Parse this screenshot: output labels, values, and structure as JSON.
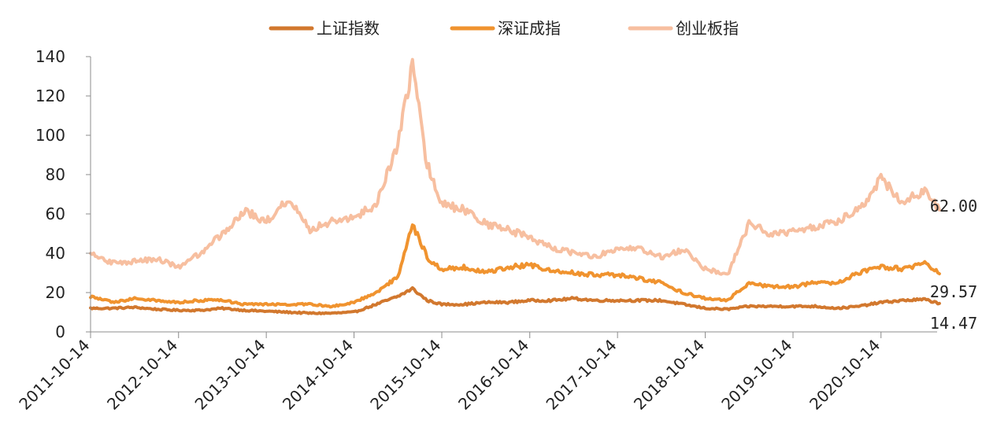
{
  "chart_data": {
    "type": "line",
    "title": "",
    "xlabel": "",
    "ylabel": "",
    "ylim": [
      0,
      140
    ],
    "y_ticks": [
      "0",
      "20",
      "40",
      "60",
      "80",
      "100",
      "120",
      "140"
    ],
    "x_ticks": [
      "2011-10-14",
      "2012-10-14",
      "2013-10-14",
      "2014-10-14",
      "2015-10-14",
      "2016-10-14",
      "2017-10-14",
      "2018-10-14",
      "2019-10-14",
      "2020-10-14"
    ],
    "grid": false,
    "legend_position": "top-center",
    "x": [
      "2011-10-14",
      "2012-01-14",
      "2012-04-14",
      "2012-07-14",
      "2012-10-14",
      "2013-01-14",
      "2013-04-14",
      "2013-07-14",
      "2013-10-14",
      "2014-01-14",
      "2014-04-14",
      "2014-07-14",
      "2014-10-14",
      "2015-01-14",
      "2015-04-14",
      "2015-06-14",
      "2015-08-14",
      "2015-10-14",
      "2016-01-14",
      "2016-04-14",
      "2016-07-14",
      "2016-10-14",
      "2017-01-14",
      "2017-04-14",
      "2017-07-14",
      "2017-10-14",
      "2018-01-14",
      "2018-04-14",
      "2018-07-14",
      "2018-10-14",
      "2019-01-14",
      "2019-04-14",
      "2019-07-14",
      "2019-10-14",
      "2020-01-14",
      "2020-04-14",
      "2020-07-14",
      "2020-10-14",
      "2021-01-14",
      "2021-04-14",
      "2021-06-14"
    ],
    "series": [
      {
        "name": "上证指数",
        "color": "#D2782E",
        "values": [
          12,
          12,
          12.5,
          11.5,
          11,
          11,
          12,
          11,
          10.5,
          10,
          9.5,
          9.5,
          10,
          14,
          18,
          22,
          16,
          14,
          14,
          15,
          15,
          16,
          16,
          17,
          16,
          16,
          16,
          16,
          14,
          12,
          11.5,
          13,
          13,
          13,
          13,
          12,
          13,
          15,
          16,
          16.5,
          14.47
        ],
        "end_label": "14.47"
      },
      {
        "name": "深证成指",
        "color": "#F0932F",
        "values": [
          18,
          15,
          17,
          16,
          15,
          16,
          16,
          14,
          14,
          14,
          14,
          13,
          15,
          20,
          28,
          55,
          38,
          32,
          33,
          30,
          33,
          34,
          31,
          30,
          29,
          29,
          27,
          25,
          20,
          17,
          16,
          25,
          23,
          23,
          25,
          25,
          30,
          33,
          32,
          35,
          29.57
        ],
        "end_label": "29.57"
      },
      {
        "name": "创业板指",
        "color": "#F7BFA0",
        "values": [
          40,
          35,
          36,
          37,
          33,
          40,
          50,
          62,
          56,
          68,
          52,
          56,
          58,
          65,
          95,
          135,
          85,
          65,
          62,
          55,
          52,
          48,
          43,
          40,
          38,
          43,
          42,
          38,
          42,
          32,
          29,
          55,
          50,
          51,
          53,
          56,
          62,
          78,
          66,
          72,
          62.0
        ],
        "end_label": "62.00"
      }
    ]
  }
}
